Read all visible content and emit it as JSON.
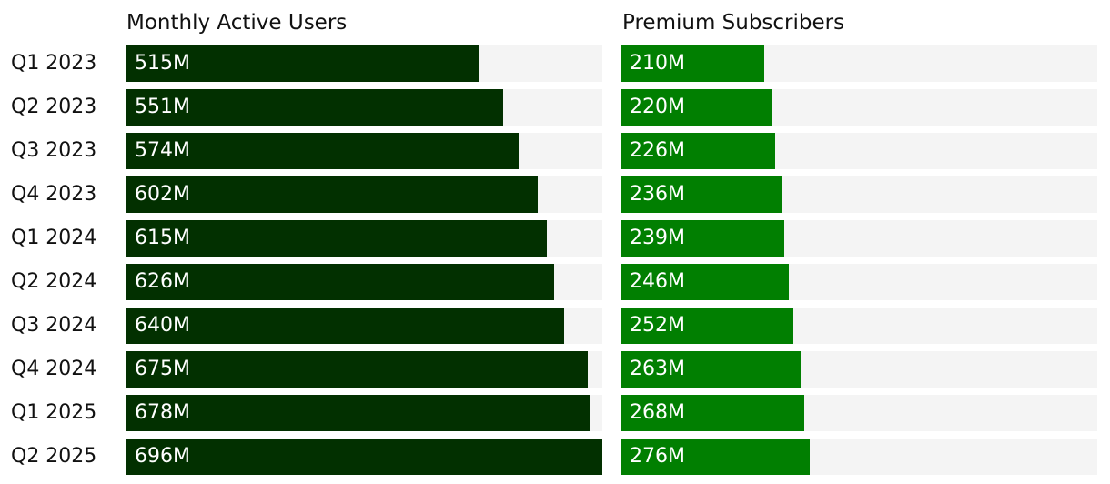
{
  "colors": {
    "users_bar": "#023000",
    "subs_bar": "#017f01",
    "track": "#f4f4f4"
  },
  "chart_data": {
    "type": "bar",
    "orientation": "horizontal",
    "grid": false,
    "categories": [
      "Q1 2023",
      "Q2 2023",
      "Q3 2023",
      "Q4 2023",
      "Q1 2024",
      "Q2 2024",
      "Q3 2024",
      "Q4 2024",
      "Q1 2025",
      "Q2 2025"
    ],
    "series": [
      {
        "name": "Monthly Active Users",
        "values": [
          515,
          551,
          574,
          602,
          615,
          626,
          640,
          675,
          678,
          696
        ],
        "labels": [
          "515M",
          "551M",
          "574M",
          "602M",
          "615M",
          "626M",
          "640M",
          "675M",
          "678M",
          "696M"
        ],
        "xlim": [
          0,
          696
        ]
      },
      {
        "name": "Premium Subscribers",
        "values": [
          210,
          220,
          226,
          236,
          239,
          246,
          252,
          263,
          268,
          276
        ],
        "labels": [
          "210M",
          "220M",
          "226M",
          "236M",
          "239M",
          "246M",
          "252M",
          "263M",
          "268M",
          "276M"
        ],
        "xlim": [
          0,
          696
        ]
      }
    ]
  }
}
